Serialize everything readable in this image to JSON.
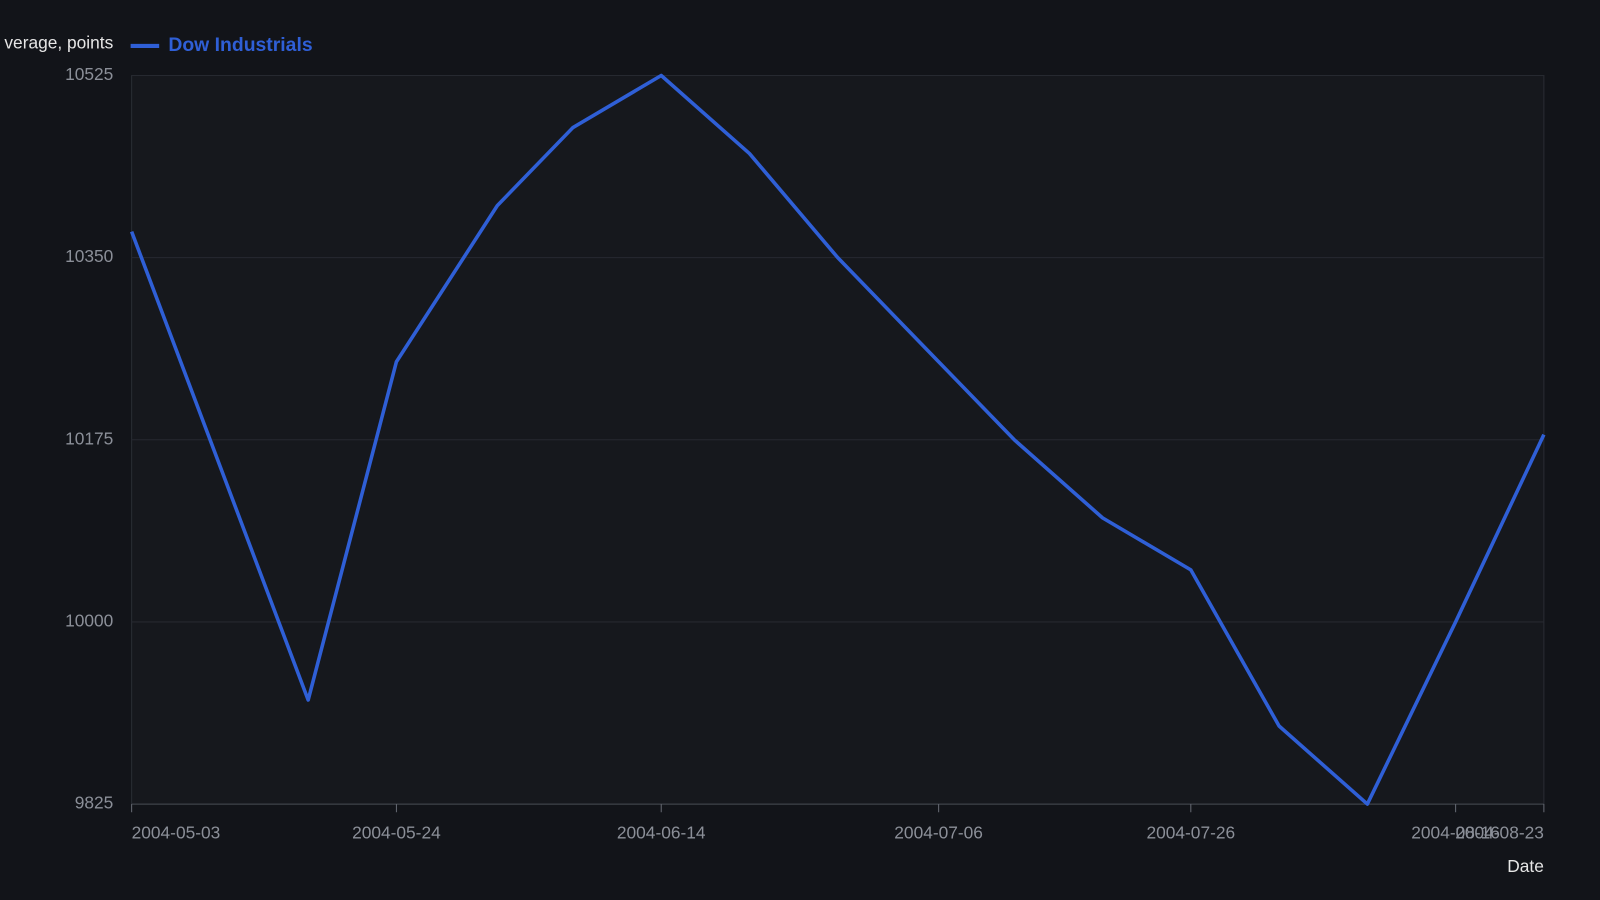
{
  "chart_data": {
    "type": "line",
    "y_label": "verage, points",
    "x_label": "Date",
    "x": [
      "2004-05-03",
      "2004-05-17",
      "2004-05-24",
      "2004-06-01",
      "2004-06-07",
      "2004-06-14",
      "2004-06-21",
      "2004-06-28",
      "2004-07-06",
      "2004-07-12",
      "2004-07-19",
      "2004-07-26",
      "2004-08-02",
      "2004-08-09",
      "2004-08-16",
      "2004-08-23"
    ],
    "series": [
      {
        "name": "Dow Industrials",
        "color": "#2f5fd6",
        "values": [
          10375,
          9925,
          10250,
          10400,
          10475,
          10525,
          10450,
          10350,
          10250,
          10175,
          10100,
          10050,
          9900,
          9825,
          10000,
          10180
        ]
      }
    ],
    "xlim": [
      "2004-05-03",
      "2004-08-23"
    ],
    "xticks": [
      "2004-05-03",
      "2004-05-24",
      "2004-06-14",
      "2004-07-06",
      "2004-07-26",
      "2004-08-16",
      "2004-08-23"
    ],
    "ylim": [
      9825,
      10525
    ],
    "yticks": [
      9825,
      10000,
      10175,
      10350,
      10525
    ],
    "grid": true,
    "legend": "top-left"
  }
}
